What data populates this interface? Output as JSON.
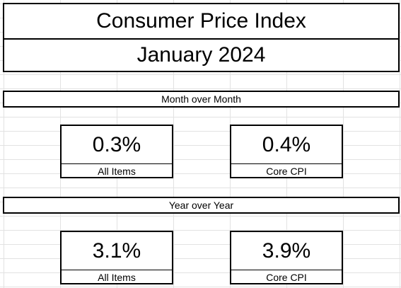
{
  "header": {
    "title": "Consumer Price Index",
    "period": "January 2024"
  },
  "sections": [
    {
      "heading": "Month over Month",
      "cards": [
        {
          "value": "0.3%",
          "label": "All Items"
        },
        {
          "value": "0.4%",
          "label": "Core CPI"
        }
      ]
    },
    {
      "heading": "Year over Year",
      "cards": [
        {
          "value": "3.1%",
          "label": "All Items"
        },
        {
          "value": "3.9%",
          "label": "Core CPI"
        }
      ]
    }
  ]
}
